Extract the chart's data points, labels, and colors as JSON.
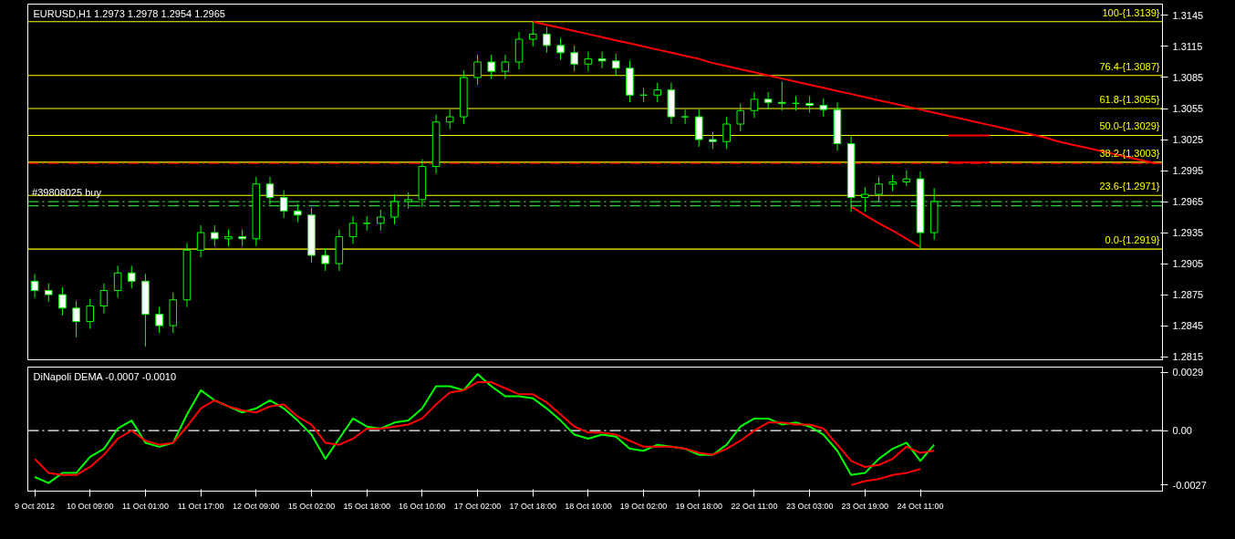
{
  "chart_data": [
    {
      "type": "candlestick",
      "title": "EURUSD,H1  1.2973 1.2978 1.2954 1.2965",
      "color": "#00ff00",
      "categories": [
        null,
        null,
        null,
        null,
        null,
        null,
        null,
        null,
        null,
        null,
        null,
        null,
        null,
        null,
        null,
        null,
        null,
        null,
        null,
        null,
        null,
        null,
        null,
        null,
        null,
        null,
        null,
        null,
        null,
        null,
        null,
        null,
        null,
        null,
        null,
        null,
        null,
        null,
        null,
        null,
        null,
        null,
        null,
        null,
        null,
        null,
        null,
        null,
        null,
        null,
        null,
        null,
        null,
        null,
        null,
        null,
        null,
        null,
        null,
        null,
        null,
        null,
        null,
        null,
        null,
        null,
        null,
        null,
        null,
        null,
        null,
        null,
        null,
        null,
        null,
        null,
        null,
        null,
        null,
        null,
        null,
        null
      ],
      "ohlc": [
        [
          1.2888,
          1.2895,
          1.2872,
          1.2879
        ],
        [
          1.2879,
          1.2886,
          1.2868,
          1.2875
        ],
        [
          1.2875,
          1.2882,
          1.2855,
          1.2862
        ],
        [
          1.2862,
          1.2869,
          1.2834,
          1.2849
        ],
        [
          1.2849,
          1.2871,
          1.2842,
          1.2864
        ],
        [
          1.2864,
          1.2886,
          1.2857,
          1.2879
        ],
        [
          1.2879,
          1.2903,
          1.2872,
          1.2896
        ],
        [
          1.2896,
          1.2903,
          1.2881,
          1.2888
        ],
        [
          1.2888,
          1.2895,
          1.2825,
          1.2856
        ],
        [
          1.2856,
          1.2863,
          1.2838,
          1.2845
        ],
        [
          1.2845,
          1.2877,
          1.2838,
          1.287
        ],
        [
          1.287,
          1.2925,
          1.2863,
          1.2918
        ],
        [
          1.2918,
          1.2942,
          1.2911,
          1.2935
        ],
        [
          1.2935,
          1.2942,
          1.2922,
          1.2929
        ],
        [
          1.2929,
          1.2938,
          1.2922,
          1.2931
        ],
        [
          1.2931,
          1.2938,
          1.2922,
          1.2929
        ],
        [
          1.2929,
          1.2989,
          1.2922,
          1.2982
        ],
        [
          1.2982,
          1.2989,
          1.2962,
          1.2969
        ],
        [
          1.2969,
          1.2976,
          1.2949,
          1.2956
        ],
        [
          1.2956,
          1.2963,
          1.2945,
          1.2952
        ],
        [
          1.2952,
          1.2959,
          1.2906,
          1.2913
        ],
        [
          1.2913,
          1.292,
          1.2898,
          1.2905
        ],
        [
          1.2905,
          1.2938,
          1.2898,
          1.2931
        ],
        [
          1.2931,
          1.2951,
          1.2924,
          1.2944
        ],
        [
          1.2944,
          1.2951,
          1.2937,
          1.2944
        ],
        [
          1.2944,
          1.2957,
          1.2937,
          1.295
        ],
        [
          1.295,
          1.2972,
          1.2943,
          1.2965
        ],
        [
          1.2965,
          1.2974,
          1.2958,
          1.2967
        ],
        [
          1.2967,
          1.3006,
          1.296,
          1.2999
        ],
        [
          1.2999,
          1.3049,
          1.2992,
          1.3042
        ],
        [
          1.3042,
          1.3054,
          1.3035,
          1.3047
        ],
        [
          1.3047,
          1.3092,
          1.304,
          1.3085
        ],
        [
          1.3085,
          1.3107,
          1.3078,
          1.31
        ],
        [
          1.31,
          1.3107,
          1.3084,
          1.3091
        ],
        [
          1.3091,
          1.3107,
          1.3084,
          1.31
        ],
        [
          1.31,
          1.3129,
          1.3093,
          1.3122
        ],
        [
          1.3122,
          1.3139,
          1.3115,
          1.3127
        ],
        [
          1.3127,
          1.3134,
          1.3109,
          1.3116
        ],
        [
          1.3116,
          1.3123,
          1.3102,
          1.3109
        ],
        [
          1.3109,
          1.3116,
          1.3091,
          1.3098
        ],
        [
          1.3098,
          1.311,
          1.3091,
          1.3103
        ],
        [
          1.3103,
          1.311,
          1.3094,
          1.3101
        ],
        [
          1.3101,
          1.3108,
          1.3087,
          1.3094
        ],
        [
          1.3094,
          1.3101,
          1.3061,
          1.3068
        ],
        [
          1.3068,
          1.3075,
          1.3061,
          1.3068
        ],
        [
          1.3068,
          1.308,
          1.3061,
          1.3073
        ],
        [
          1.3073,
          1.308,
          1.304,
          1.3047
        ],
        [
          1.3047,
          1.3054,
          1.304,
          1.3047
        ],
        [
          1.3047,
          1.3054,
          1.3018,
          1.3025
        ],
        [
          1.3025,
          1.3032,
          1.3016,
          1.3023
        ],
        [
          1.3023,
          1.3047,
          1.3016,
          1.304
        ],
        [
          1.304,
          1.306,
          1.3033,
          1.3053
        ],
        [
          1.3053,
          1.3071,
          1.3046,
          1.3064
        ],
        [
          1.3064,
          1.3071,
          1.3054,
          1.3061
        ],
        [
          1.3061,
          1.3081,
          1.3053,
          1.306
        ],
        [
          1.306,
          1.3067,
          1.3053,
          1.306
        ],
        [
          1.306,
          1.3067,
          1.3051,
          1.3058
        ],
        [
          1.3058,
          1.3065,
          1.3047,
          1.3054
        ],
        [
          1.3054,
          1.3061,
          1.3014,
          1.3021
        ],
        [
          1.3021,
          1.3028,
          1.2955,
          1.2969
        ],
        [
          1.2969,
          1.2979,
          1.2955,
          1.2972
        ],
        [
          1.2972,
          1.2989,
          1.2965,
          1.2982
        ],
        [
          1.2982,
          1.2991,
          1.2975,
          1.2984
        ],
        [
          1.2984,
          1.2995,
          1.298,
          1.2987
        ],
        [
          1.2987,
          1.2994,
          1.2919,
          1.2935
        ],
        [
          1.2935,
          1.2978,
          1.2928,
          1.2965
        ],
        null,
        null,
        null,
        null,
        null,
        null,
        null,
        null,
        null,
        null,
        null,
        null,
        null,
        null,
        null,
        null
      ],
      "series": [
        {
          "type": "line",
          "color": "#ff0000",
          "values": [
            null,
            null,
            null,
            null,
            null,
            null,
            null,
            null,
            null,
            null,
            null,
            null,
            null,
            null,
            null,
            null,
            null,
            null,
            null,
            null,
            null,
            null,
            null,
            null,
            null,
            null,
            null,
            null,
            null,
            null,
            null,
            null,
            null,
            null,
            null,
            null,
            1.3139,
            1.3136,
            1.3133,
            1.313,
            1.3127,
            1.3124,
            1.3121,
            1.3118,
            1.3115,
            1.3112,
            1.3109,
            1.3106,
            1.3103,
            1.3099,
            1.3096,
            1.3093,
            1.309,
            1.3087,
            1.3084,
            1.3081,
            1.3078,
            1.3075,
            1.3072,
            1.3069,
            1.3066,
            1.3063,
            1.306,
            1.3057,
            1.3054,
            1.3051,
            1.3048,
            1.3045,
            1.3042,
            1.3039,
            1.3036,
            1.3033,
            1.303,
            1.3027,
            1.3023,
            1.302,
            1.3017,
            1.3014,
            1.3011,
            1.3008,
            1.3005,
            1.3002
          ]
        },
        {
          "type": "line",
          "color": "#ff0000",
          "values": [
            null,
            null,
            null,
            null,
            null,
            null,
            null,
            null,
            null,
            null,
            null,
            null,
            null,
            null,
            null,
            null,
            null,
            null,
            null,
            null,
            null,
            null,
            null,
            null,
            null,
            null,
            null,
            null,
            null,
            null,
            null,
            null,
            null,
            null,
            null,
            null,
            null,
            null,
            null,
            null,
            null,
            null,
            null,
            null,
            null,
            null,
            null,
            null,
            null,
            null,
            null,
            null,
            null,
            null,
            null,
            null,
            null,
            null,
            null,
            1.296,
            1.2952,
            1.2944,
            1.2937,
            1.2929,
            1.2921,
            null,
            null,
            null,
            null,
            null,
            null,
            null,
            null,
            null,
            null,
            null,
            null,
            null,
            null,
            null,
            null,
            null
          ]
        },
        {
          "type": "line",
          "color": "#ff0000",
          "values": [
            null,
            null,
            null,
            null,
            null,
            null,
            null,
            null,
            null,
            null,
            null,
            null,
            null,
            null,
            null,
            null,
            null,
            null,
            null,
            null,
            null,
            null,
            null,
            null,
            null,
            null,
            null,
            null,
            null,
            null,
            null,
            null,
            null,
            null,
            null,
            null,
            null,
            null,
            null,
            null,
            null,
            null,
            null,
            null,
            null,
            null,
            null,
            null,
            null,
            null,
            null,
            null,
            null,
            null,
            null,
            null,
            null,
            null,
            null,
            null,
            null,
            null,
            null,
            null,
            null,
            null,
            1.3029,
            1.3029,
            1.3029,
            1.3029,
            null,
            null,
            null,
            null,
            null,
            null,
            null,
            null,
            null,
            null,
            null,
            null
          ]
        },
        {
          "type": "line",
          "color": "#ff0000",
          "values": [
            null,
            null,
            null,
            null,
            null,
            null,
            null,
            null,
            null,
            null,
            null,
            null,
            null,
            null,
            null,
            null,
            null,
            null,
            null,
            null,
            null,
            null,
            null,
            null,
            null,
            null,
            null,
            null,
            null,
            null,
            null,
            null,
            null,
            null,
            null,
            null,
            null,
            null,
            null,
            null,
            null,
            null,
            null,
            null,
            null,
            null,
            null,
            null,
            null,
            null,
            null,
            null,
            null,
            null,
            null,
            null,
            null,
            null,
            null,
            null,
            null,
            null,
            null,
            null,
            null,
            null,
            1.3003,
            1.3003,
            1.3003,
            1.3003,
            null,
            null,
            null,
            null,
            null,
            null,
            null,
            null,
            null,
            null,
            null,
            null
          ]
        }
      ],
      "ylim": [
        1.2812,
        1.3156
      ],
      "yticks": [
        1.2815,
        1.2845,
        1.2875,
        1.2905,
        1.2935,
        1.2965,
        1.2995,
        1.3025,
        1.3055,
        1.3085,
        1.3115,
        1.3145
      ],
      "ref_lines": [
        {
          "axis": "y",
          "value": 1.3139,
          "label": "100-{1.3139}",
          "color": "#ffff00",
          "line_style": "solid"
        },
        {
          "axis": "y",
          "value": 1.3087,
          "label": "76.4-{1.3087}",
          "color": "#ffff00",
          "line_style": "solid"
        },
        {
          "axis": "y",
          "value": 1.3055,
          "label": "61.8-{1.3055}",
          "color": "#ffff00",
          "line_style": "solid"
        },
        {
          "axis": "y",
          "value": 1.3029,
          "label": "50.0-{1.3029}",
          "color": "#ffff00",
          "line_style": "solid"
        },
        {
          "axis": "y",
          "value": 1.3003,
          "label": "38.2-{1.3003}",
          "color": "#ffff00",
          "line_style": "solid"
        },
        {
          "axis": "y",
          "value": 1.2971,
          "label": "23.6-{1.2971}",
          "color": "#ffff00",
          "line_style": "solid"
        },
        {
          "axis": "y",
          "value": 1.2919,
          "label": "0.0-{1.2919}",
          "color": "#ffff00",
          "line_style": "solid"
        },
        {
          "axis": "y",
          "value": 1.3002,
          "color": "#ff0000",
          "line_style": "dashed"
        },
        {
          "axis": "y",
          "value": 1.2965,
          "label": "#39808025 buy",
          "color": "#32cd32",
          "line_style": "dashed"
        },
        {
          "axis": "y",
          "value": 1.2961,
          "color": "#32cd32",
          "line_style": "dashed"
        }
      ]
    },
    {
      "type": "line",
      "title": "DiNapoli DEMA -0.0007 -0.0010",
      "categories": [
        "9 Oct 2012",
        null,
        null,
        null,
        "10 Oct 09:00",
        null,
        null,
        null,
        "11 Oct 01:00",
        null,
        null,
        null,
        "11 Oct 17:00",
        null,
        null,
        null,
        "12 Oct 09:00",
        null,
        null,
        null,
        "15 Oct 02:00",
        null,
        null,
        null,
        "15 Oct 18:00",
        null,
        null,
        null,
        "16 Oct 10:00",
        null,
        null,
        null,
        "17 Oct 02:00",
        null,
        null,
        null,
        "17 Oct 18:00",
        null,
        null,
        null,
        "18 Oct 10:00",
        null,
        null,
        null,
        "19 Oct 02:00",
        null,
        null,
        null,
        "19 Oct 18:00",
        null,
        null,
        null,
        "22 Oct 11:00",
        null,
        null,
        null,
        "23 Oct 03:00",
        null,
        null,
        null,
        "23 Oct 19:00",
        null,
        null,
        null,
        "24 Oct 11:00",
        null,
        null,
        null,
        null,
        null,
        null,
        null,
        null,
        null,
        null,
        null,
        null,
        null,
        null,
        null,
        null,
        null
      ],
      "series": [
        {
          "color": "#00ff00",
          "values": [
            -0.0023,
            -0.0026,
            -0.0021,
            -0.0021,
            -0.0013,
            -0.0009,
            0.0001,
            0.0005,
            -0.0006,
            -0.0008,
            -0.0006,
            0.0008,
            0.002,
            0.0015,
            0.0012,
            0.0009,
            0.0011,
            0.0015,
            0.0011,
            0.0005,
            -0.0002,
            -0.0014,
            -0.0004,
            0.0006,
            0.0002,
            0.0001,
            0.0004,
            0.0005,
            0.0011,
            0.0022,
            0.0022,
            0.002,
            0.0028,
            0.0022,
            0.0017,
            0.0017,
            0.0016,
            0.0011,
            0.0005,
            -0.0002,
            -0.0004,
            -0.0002,
            -0.0003,
            -0.0009,
            -0.001,
            -0.0007,
            -0.0008,
            -0.0009,
            -0.0012,
            -0.0012,
            -0.0007,
            0.0002,
            0.0006,
            0.0006,
            0.0003,
            0.0004,
            0.0002,
            -0.0002,
            -0.001,
            -0.0022,
            -0.0021,
            -0.0014,
            -0.0009,
            -0.0006,
            -0.0015,
            -0.0007,
            null,
            null,
            null,
            null,
            null,
            null,
            null,
            null,
            null,
            null,
            null,
            null,
            null,
            null,
            null,
            null
          ]
        },
        {
          "color": "#ff0000",
          "values": [
            -0.0014,
            -0.0021,
            -0.0022,
            -0.0022,
            -0.0018,
            -0.0012,
            -0.0004,
            0.0,
            -0.0005,
            -0.0007,
            -0.0006,
            0.0002,
            0.0011,
            0.0015,
            0.0012,
            0.001,
            0.0009,
            0.0012,
            0.0013,
            0.0007,
            0.0003,
            -0.0006,
            -0.0007,
            -0.0004,
            0.0001,
            0.0001,
            0.0002,
            0.0003,
            0.0006,
            0.0013,
            0.0019,
            0.002,
            0.0024,
            0.0024,
            0.0021,
            0.0018,
            0.0018,
            0.0014,
            0.0008,
            0.0002,
            -0.0001,
            -0.0001,
            -0.0002,
            -0.0005,
            -0.0008,
            -0.0008,
            -0.0008,
            -0.0009,
            -0.0011,
            -0.0012,
            -0.0009,
            -0.0005,
            0.0,
            0.0004,
            0.0004,
            0.0003,
            0.0003,
            0.0001,
            -0.0007,
            -0.0015,
            -0.0018,
            -0.0017,
            -0.0014,
            -0.0008,
            -0.0011,
            -0.001,
            null,
            null,
            null,
            null,
            null,
            null,
            null,
            null,
            null,
            null,
            null,
            null,
            null,
            null,
            null,
            null
          ]
        },
        {
          "color": "#ff0000",
          "values": [
            null,
            null,
            null,
            null,
            null,
            null,
            null,
            null,
            null,
            null,
            null,
            null,
            null,
            null,
            null,
            null,
            null,
            null,
            null,
            null,
            null,
            null,
            null,
            null,
            null,
            null,
            null,
            null,
            null,
            null,
            null,
            null,
            null,
            null,
            null,
            null,
            null,
            null,
            null,
            null,
            null,
            null,
            null,
            null,
            null,
            null,
            null,
            null,
            null,
            null,
            null,
            null,
            null,
            null,
            null,
            null,
            null,
            null,
            null,
            -0.0027,
            -0.0025,
            -0.0024,
            -0.0022,
            -0.0021,
            -0.0019,
            null,
            null,
            null,
            null,
            null,
            null,
            null,
            null,
            null,
            null,
            null,
            null,
            null,
            null,
            null,
            null,
            null
          ]
        }
      ],
      "ylim": [
        -0.003,
        0.00315
      ],
      "yticks": [
        -0.0027,
        {
          "value": 0,
          "label": "0.00"
        },
        0.0029
      ],
      "ref_lines": [
        {
          "axis": "y",
          "value": 0,
          "color": "#ffffff",
          "line_style": "dashed"
        }
      ]
    }
  ]
}
